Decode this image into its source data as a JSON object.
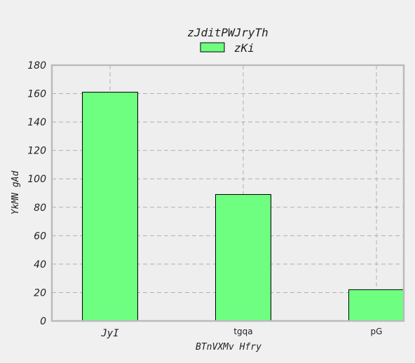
{
  "chart_data": {
    "type": "bar",
    "title": "zJditPWJryTh",
    "xlabel": "BTnVXMv Hfry",
    "ylabel": "YkMN gAd",
    "categories": [
      "JyI",
      "tgqa",
      "pG"
    ],
    "series": [
      {
        "name": "zKi",
        "values": [
          161,
          89,
          22
        ]
      }
    ],
    "ylim": [
      0,
      180
    ],
    "yticks": [
      0,
      20,
      40,
      60,
      80,
      100,
      120,
      140,
      160,
      180
    ],
    "grid": true,
    "legend_position": "top-center",
    "colors": {
      "bar_fill": "#6eff81",
      "bar_edge": "#000000",
      "plot_bg": "#eeeeee",
      "grid": "#b0b0b0",
      "frame": "#bbbbbb",
      "figure_bg": "#f0f0f0"
    }
  }
}
